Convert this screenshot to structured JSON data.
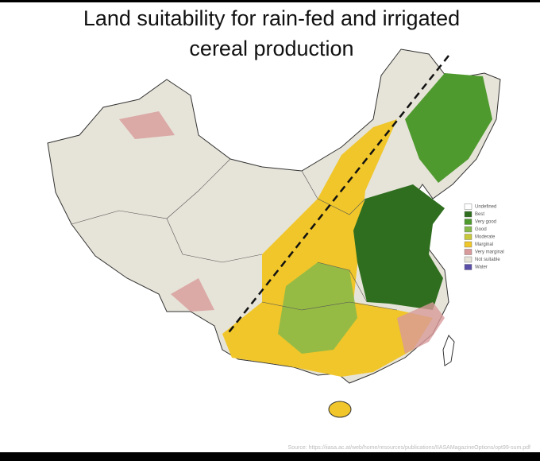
{
  "title_lines": [
    "Land suitability for rain-fed and irrigated",
    "cereal production"
  ],
  "legend": [
    {
      "label": "Undefined",
      "color": "#ffffff"
    },
    {
      "label": "Best",
      "color": "#2f6e1f"
    },
    {
      "label": "Very good",
      "color": "#4f9a2e"
    },
    {
      "label": "Good",
      "color": "#86b94a"
    },
    {
      "label": "Moderate",
      "color": "#c9c83a"
    },
    {
      "label": "Marginal",
      "color": "#f0c62a"
    },
    {
      "label": "Very marginal",
      "color": "#d89a9a"
    },
    {
      "label": "Not suitable",
      "color": "#e6e3d8"
    },
    {
      "label": "Water",
      "color": "#5a4fa8"
    }
  ],
  "source": "Source: https://iiasa.ac.at/web/home/resources/publications/IIASAMagazineOptions/opt99-sum.pdf"
}
